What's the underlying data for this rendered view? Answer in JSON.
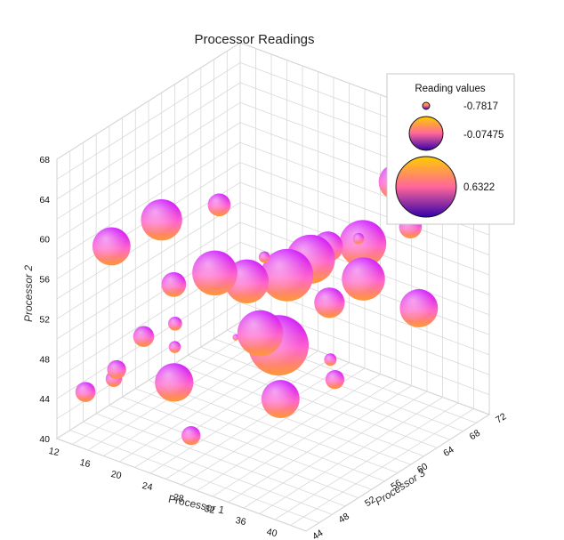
{
  "chart_data": {
    "type": "bubble3d",
    "title": "Processor Readings",
    "xlabel": "Processor 1",
    "ylabel": "Processor 2",
    "zlabel": "Processor 3",
    "xlim": [
      12,
      44
    ],
    "ylim": [
      40,
      68
    ],
    "zlim": [
      44,
      72
    ],
    "xticks": [
      12,
      16,
      20,
      24,
      28,
      32,
      36,
      40,
      44
    ],
    "yticks": [
      40,
      44,
      48,
      52,
      56,
      60,
      64,
      68
    ],
    "zticks": [
      44,
      48,
      52,
      56,
      60,
      64,
      68,
      72
    ],
    "grid": true,
    "legend": {
      "title": "Reading values",
      "position": "top-right",
      "entries": [
        "-0.7817",
        "-0.07475",
        "0.6322"
      ]
    },
    "colors": {
      "bubble_top": "#c800ff",
      "bubble_mid": "#ff66cc",
      "bubble_bottom": "#ff9933",
      "gridline": "#d9d9d9",
      "wall": "#ffffff"
    },
    "points": [
      {
        "x": 15.5,
        "y": 45.6,
        "z": 44.2,
        "value": -0.42
      },
      {
        "x": 19.5,
        "y": 49.0,
        "z": 44.2,
        "value": -0.45
      },
      {
        "x": 18.8,
        "y": 47.7,
        "z": 44.6,
        "value": -0.52
      },
      {
        "x": 22.3,
        "y": 52.8,
        "z": 45.0,
        "value": -0.4
      },
      {
        "x": 18.0,
        "y": 60.5,
        "z": 45.2,
        "value": 0.05
      },
      {
        "x": 25.5,
        "y": 58.6,
        "z": 45.8,
        "value": -0.3
      },
      {
        "x": 22.5,
        "y": 63.5,
        "z": 47.5,
        "value": 0.13
      },
      {
        "x": 25.5,
        "y": 54.6,
        "z": 46.0,
        "value": -0.58
      },
      {
        "x": 26.3,
        "y": 52.9,
        "z": 45.0,
        "value": -0.63
      },
      {
        "x": 27.8,
        "y": 65.5,
        "z": 50.0,
        "value": -0.35
      },
      {
        "x": 25.8,
        "y": 49.0,
        "z": 45.5,
        "value": 0.06
      },
      {
        "x": 30.5,
        "y": 58.2,
        "z": 51.0,
        "value": 0.2
      },
      {
        "x": 28.5,
        "y": 59.5,
        "z": 48.5,
        "value": 0.23
      },
      {
        "x": 31.5,
        "y": 60.3,
        "z": 52.5,
        "value": -0.65
      },
      {
        "x": 29.5,
        "y": 52.5,
        "z": 50.5,
        "value": -0.78
      },
      {
        "x": 34.0,
        "y": 59.0,
        "z": 53.0,
        "value": 0.42
      },
      {
        "x": 34.5,
        "y": 59.5,
        "z": 56.0,
        "value": 0.33
      },
      {
        "x": 37.3,
        "y": 60.7,
        "z": 60.0,
        "value": -0.65
      },
      {
        "x": 35.2,
        "y": 60.2,
        "z": 57.8,
        "value": -0.15
      },
      {
        "x": 33.5,
        "y": 54.5,
        "z": 49.5,
        "value": 0.25
      },
      {
        "x": 35.0,
        "y": 53.3,
        "z": 50.5,
        "value": 0.63
      },
      {
        "x": 36.5,
        "y": 55.5,
        "z": 56.5,
        "value": -0.15
      },
      {
        "x": 37.0,
        "y": 59.7,
        "z": 61.0,
        "value": 0.28
      },
      {
        "x": 37.5,
        "y": 56.5,
        "z": 60.5,
        "value": 0.18
      },
      {
        "x": 38.0,
        "y": 64.5,
        "z": 65.0,
        "value": 0.0
      },
      {
        "x": 38.5,
        "y": 59.5,
        "z": 66.5,
        "value": -0.35
      },
      {
        "x": 34.0,
        "y": 47.0,
        "z": 52.0,
        "value": 0.05
      },
      {
        "x": 37.2,
        "y": 48.0,
        "z": 56.5,
        "value": -0.45
      },
      {
        "x": 36.2,
        "y": 49.5,
        "z": 57.0,
        "value": -0.62
      },
      {
        "x": 40.0,
        "y": 52.0,
        "z": 66.0,
        "value": 0.05
      },
      {
        "x": 22.5,
        "y": 40.0,
        "z": 52.0,
        "value": -0.45
      }
    ]
  }
}
